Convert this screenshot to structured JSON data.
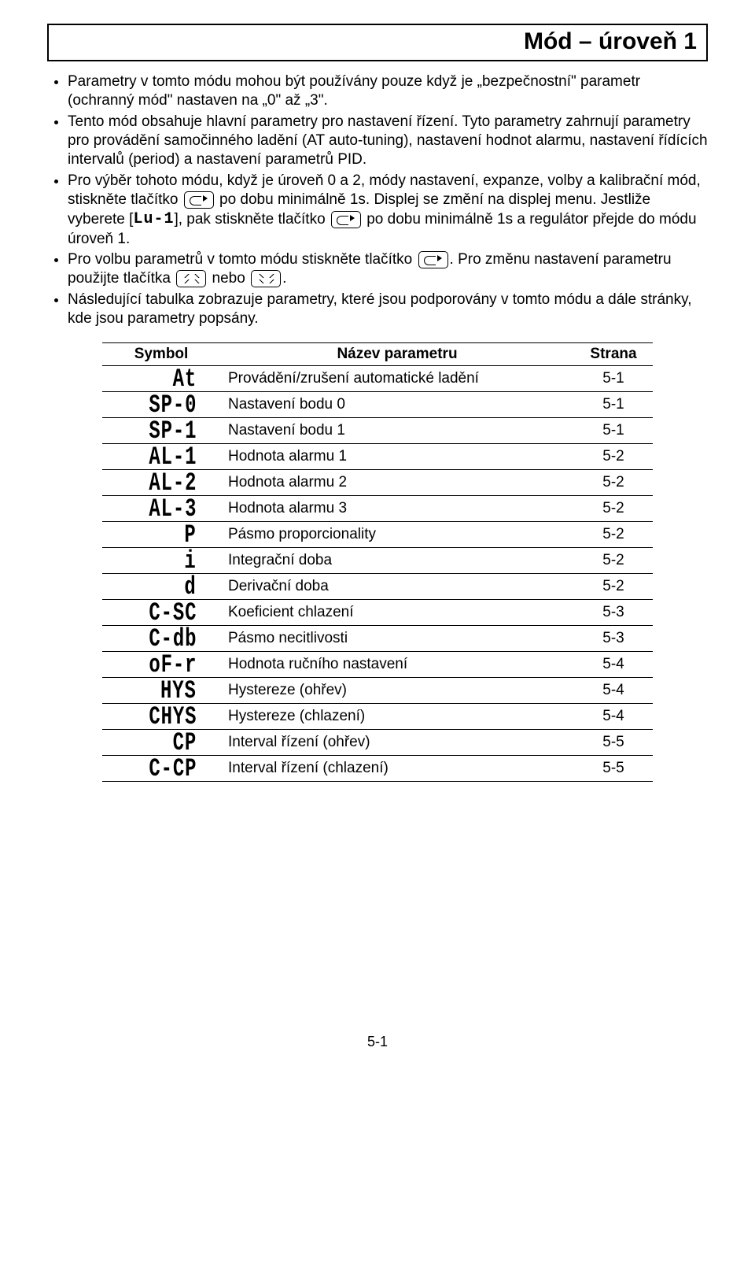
{
  "title": "Mód – úroveň 1",
  "bullets": {
    "b1": "Parametry v tomto módu mohou být používány pouze když je „bezpečnostní\" parametr (ochranný mód\" nastaven na „0\" až „3\".",
    "b2": "Tento mód obsahuje hlavní parametry pro nastavení řízení. Tyto parametry zahrnují parametry pro provádění samočinného ladění (AT auto-tuning), nastavení hodnot alarmu, nastavení řídících intervalů (period) a nastavení parametrů PID.",
    "b3_a": "Pro výběr tohoto módu, když je úroveň 0 a 2, módy nastavení, expanze, volby a kalibrační mód, stiskněte tlačítko ",
    "b3_b": " po dobu minimálně 1s. Displej se změní na displej menu. Jestliže vyberete [",
    "b3_seg": "Lu-1",
    "b3_c": "], pak stiskněte tlačítko ",
    "b3_d": " po dobu minimálně 1s a regulátor přejde do módu úroveň 1.",
    "b4_a": "Pro volbu parametrů v tomto módu stiskněte tlačítko ",
    "b4_b": ". Pro změnu nastavení parametru použijte tlačítka ",
    "b4_c": " nebo ",
    "b4_d": ".",
    "b5": "Následující tabulka zobrazuje parametry, které jsou podporovány v tomto módu a dále stránky, kde jsou parametry popsány."
  },
  "table": {
    "headers": {
      "c1": "Symbol",
      "c2": "Název parametru",
      "c3": "Strana"
    },
    "rows": [
      {
        "sym": "At",
        "name": "Provádění/zrušení automatické ladění",
        "page": "5-1"
      },
      {
        "sym": "SP-0",
        "name": "Nastavení bodu 0",
        "page": "5-1"
      },
      {
        "sym": "SP-1",
        "name": "Nastavení bodu 1",
        "page": "5-1"
      },
      {
        "sym": "AL-1",
        "name": "Hodnota alarmu 1",
        "page": "5-2"
      },
      {
        "sym": "AL-2",
        "name": "Hodnota alarmu 2",
        "page": "5-2"
      },
      {
        "sym": "AL-3",
        "name": "Hodnota alarmu 3",
        "page": "5-2"
      },
      {
        "sym": "P",
        "name": "Pásmo proporcionality",
        "page": "5-2"
      },
      {
        "sym": "i",
        "name": "Integrační doba",
        "page": "5-2"
      },
      {
        "sym": "d",
        "name": "Derivační doba",
        "page": "5-2"
      },
      {
        "sym": "C-SC",
        "name": "Koeficient chlazení",
        "page": "5-3"
      },
      {
        "sym": "C-db",
        "name": "Pásmo necitlivosti",
        "page": "5-3"
      },
      {
        "sym": "oF-r",
        "name": "Hodnota ručního nastavení",
        "page": "5-4"
      },
      {
        "sym": "HYS",
        "name": "Hystereze (ohřev)",
        "page": "5-4"
      },
      {
        "sym": "CHYS",
        "name": "Hystereze (chlazení)",
        "page": "5-4"
      },
      {
        "sym": "CP",
        "name": "Interval řízení (ohřev)",
        "page": "5-5"
      },
      {
        "sym": "C-CP",
        "name": "Interval řízení (chlazení)",
        "page": "5-5"
      }
    ]
  },
  "footer": "5-1"
}
